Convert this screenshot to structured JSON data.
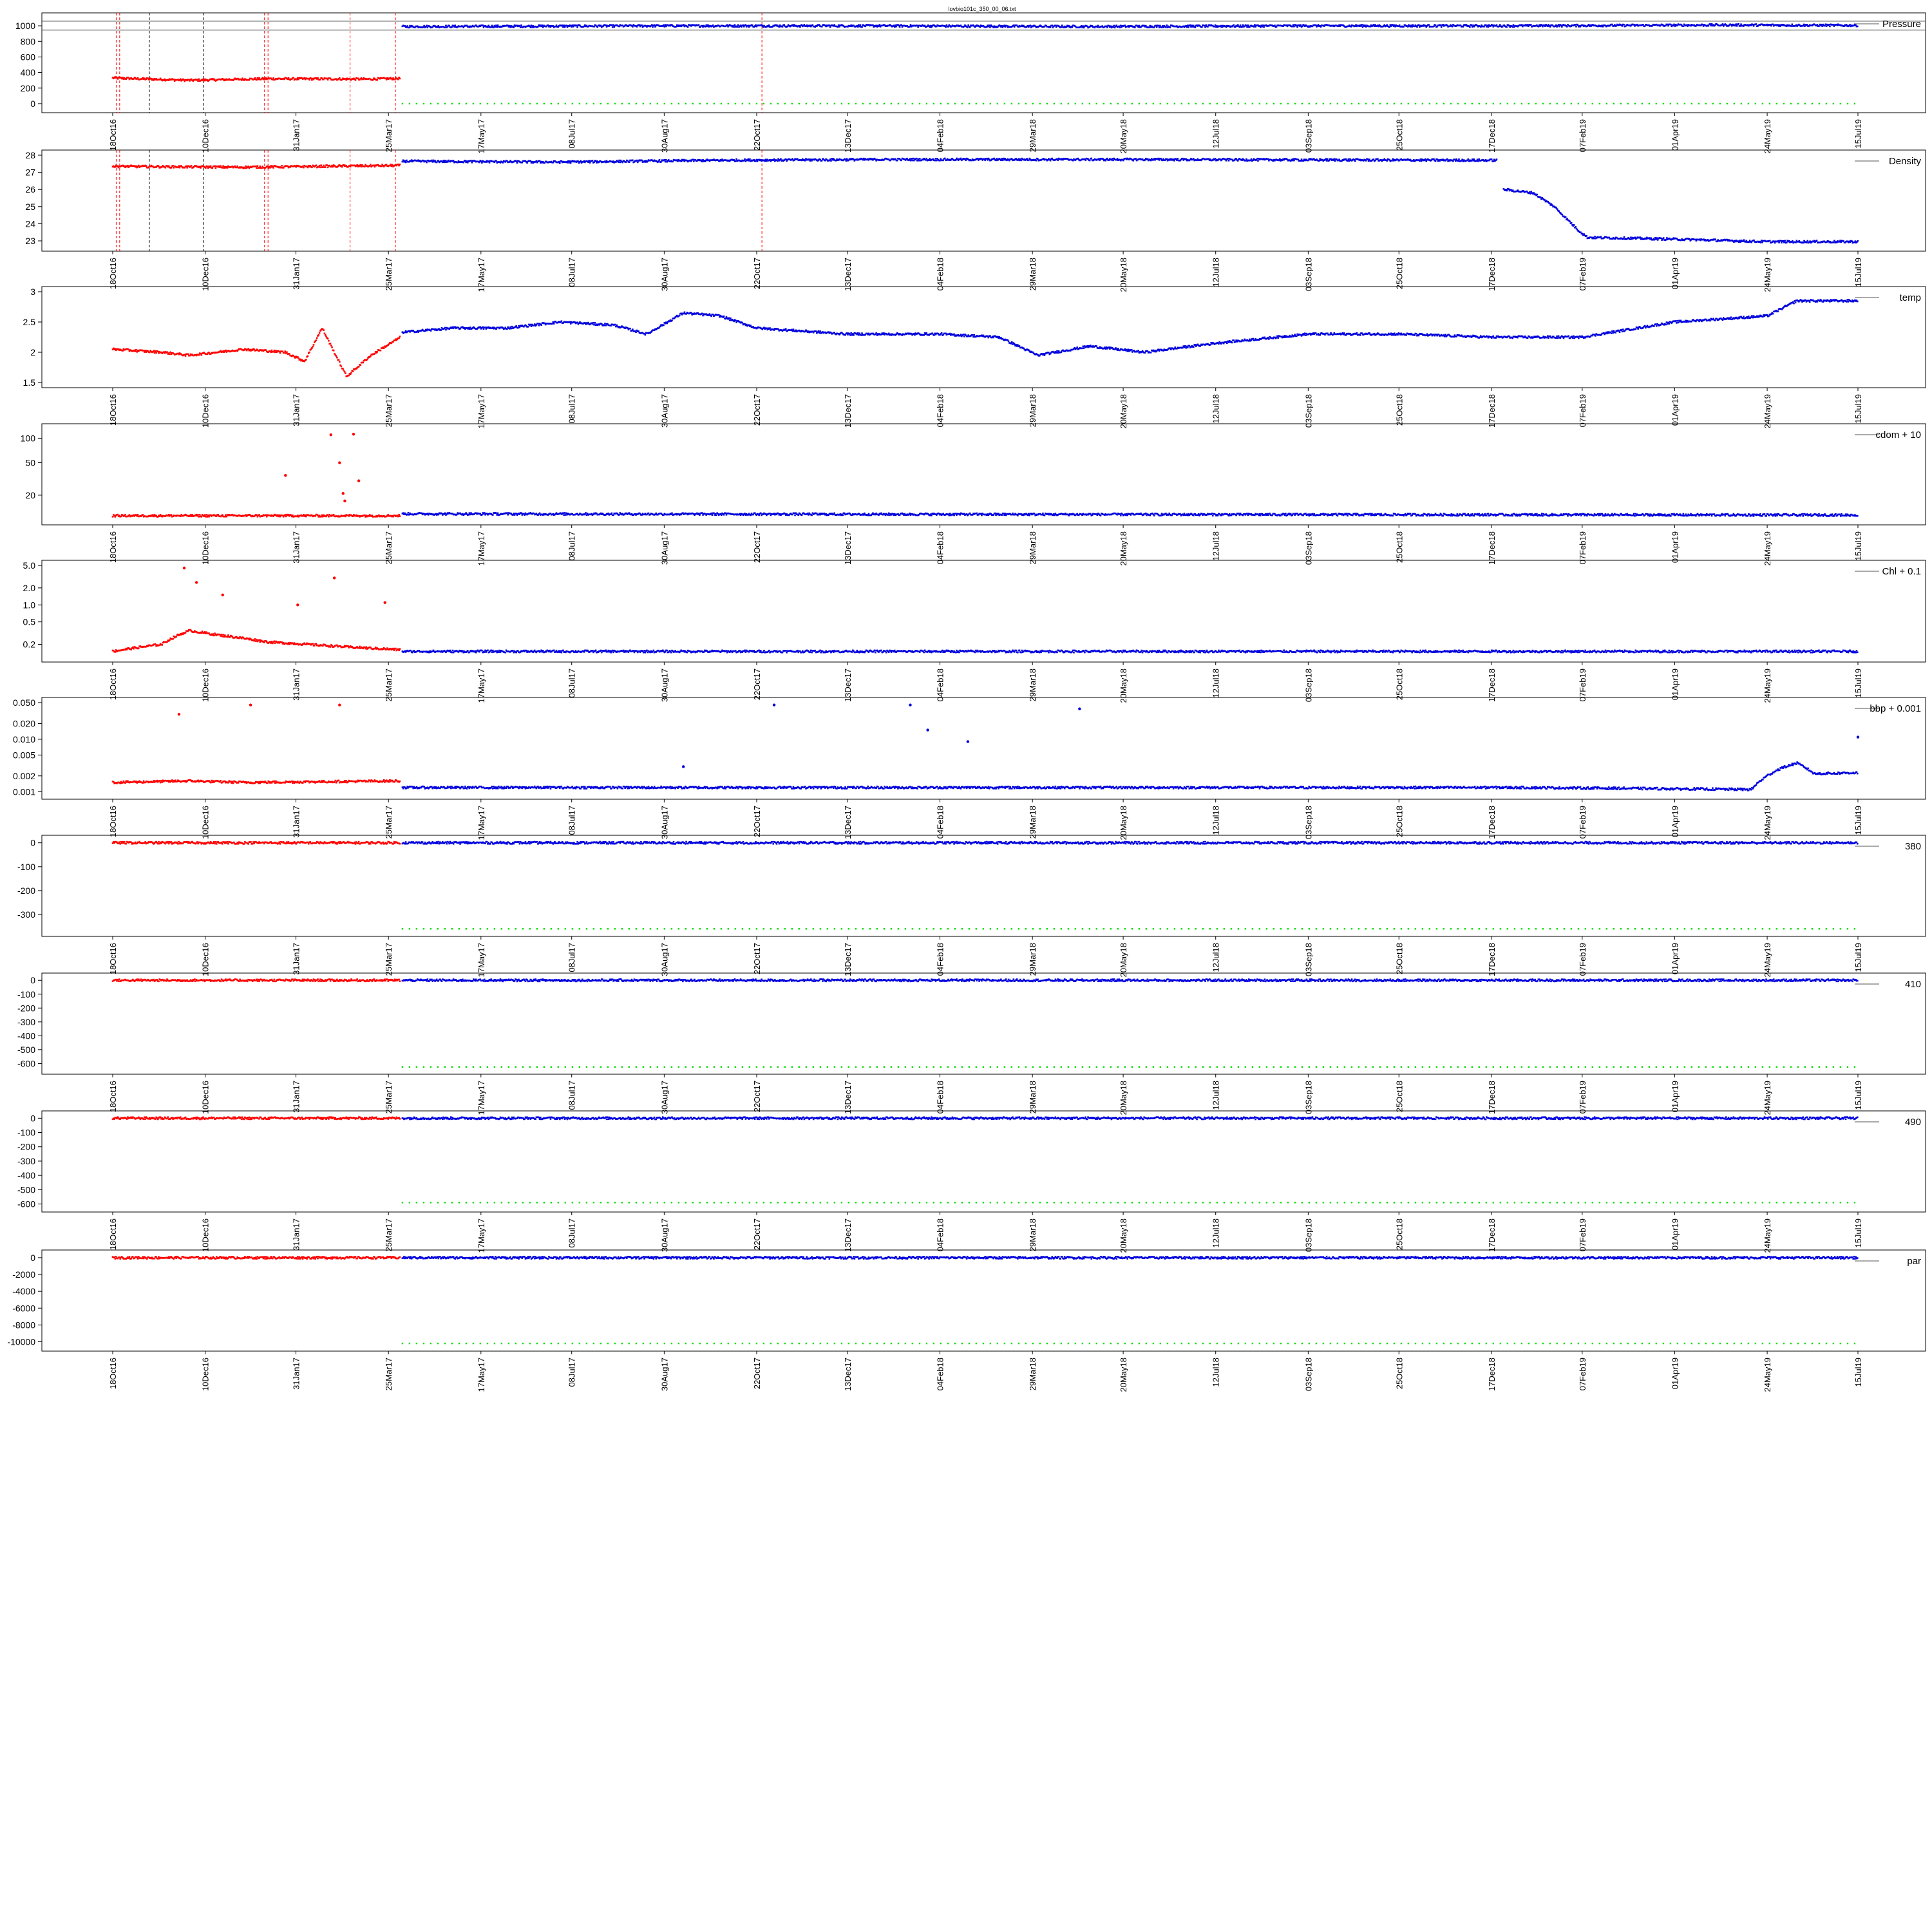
{
  "title": "lovbio101c_350_00_06.txt",
  "x_ticks": [
    "18Oct16",
    "10Dec16",
    "31Jan17",
    "25Mar17",
    "17May17",
    "08Jul17",
    "30Aug17",
    "22Oct17",
    "13Dec17",
    "04Feb18",
    "29Mar18",
    "20May18",
    "12Jul18",
    "03Sep18",
    "25Oct18",
    "17Dec18",
    "07Feb19",
    "01Apr19",
    "24May19",
    "15Jul19"
  ],
  "colors": {
    "segment1": "#ff0000",
    "segment2": "#0000dd",
    "flag": "#00dd00",
    "marker_red": "#ff0000",
    "marker_black": "#000000"
  },
  "chart_data": [
    {
      "type": "scatter",
      "name": "Pressure",
      "legend": "Pressure",
      "legend_position": "top-right",
      "ylim": [
        -50,
        1100
      ],
      "yticks": [
        0,
        200,
        400,
        600,
        800,
        1000
      ],
      "yscale": "linear",
      "segments": [
        {
          "color": "segment1",
          "points": [
            [
              "18Oct16",
              330
            ],
            [
              "01Dec16",
              300
            ],
            [
              "15Jan17",
              320
            ],
            [
              "15Mar17",
              315
            ],
            [
              "01Apr17",
              325
            ]
          ]
        },
        {
          "color": "segment2",
          "points": [
            [
              "02Apr17",
              990
            ],
            [
              "01Sep17",
              1000
            ],
            [
              "01Jan18",
              1000
            ],
            [
              "01May18",
              990
            ],
            [
              "01Sep18",
              1000
            ],
            [
              "01Jan19",
              1000
            ],
            [
              "01May19",
              1010
            ],
            [
              "15Jul19",
              1005
            ]
          ]
        }
      ],
      "flags": {
        "value": 0,
        "from": "02Apr17",
        "to": "15Jul19"
      },
      "hlines": [
        945,
        1060
      ],
      "vlines_red": [
        "20Oct16",
        "22Oct16",
        "13Jan17",
        "15Jan17",
        "03Mar17",
        "29Mar17",
        "25Oct17"
      ],
      "vlines_black": [
        "08Nov16",
        "09Dec16"
      ]
    },
    {
      "type": "scatter",
      "name": "Density",
      "legend": "Density",
      "legend_position": "top-right",
      "ylim": [
        22.7,
        28.0
      ],
      "yticks": [
        23,
        24,
        25,
        26,
        27,
        28
      ],
      "yscale": "linear",
      "segments": [
        {
          "color": "segment1",
          "points": [
            [
              "18Oct16",
              27.35
            ],
            [
              "01Jan17",
              27.3
            ],
            [
              "01Apr17",
              27.4
            ]
          ]
        },
        {
          "color": "segment2",
          "points": [
            [
              "02Apr17",
              27.65
            ],
            [
              "01Jul17",
              27.6
            ],
            [
              "01Oct17",
              27.7
            ],
            [
              "01Jan18",
              27.75
            ],
            [
              "01Jun18",
              27.75
            ],
            [
              "20Dec18",
              27.7
            ]
          ]
        },
        {
          "color": "segment2",
          "points": [
            [
              "24Dec18",
              26.0
            ],
            [
              "10Jan19",
              25.8
            ],
            [
              "22Jan19",
              25.0
            ],
            [
              "05Feb19",
              23.6
            ],
            [
              "10Feb19",
              23.2
            ],
            [
              "01Apr19",
              23.1
            ],
            [
              "24May19",
              22.95
            ],
            [
              "15Jul19",
              22.95
            ]
          ]
        }
      ],
      "vlines_red": [
        "20Oct16",
        "22Oct16",
        "13Jan17",
        "15Jan17",
        "03Mar17",
        "29Mar17",
        "25Oct17"
      ],
      "vlines_black": [
        "08Nov16",
        "09Dec16"
      ]
    },
    {
      "type": "scatter",
      "name": "temp",
      "legend": "temp",
      "legend_position": "top-right",
      "ylim": [
        1.5,
        3.0
      ],
      "yticks": [
        1.5,
        2.0,
        2.5,
        3.0
      ],
      "yscale": "linear",
      "segments": [
        {
          "color": "segment1",
          "points": [
            [
              "18Oct16",
              2.05
            ],
            [
              "15Nov16",
              2.0
            ],
            [
              "01Dec16",
              1.95
            ],
            [
              "01Jan17",
              2.05
            ],
            [
              "25Jan17",
              2.0
            ],
            [
              "05Feb17",
              1.85
            ],
            [
              "15Feb17",
              2.4
            ],
            [
              "01Mar17",
              1.6
            ],
            [
              "15Mar17",
              1.95
            ],
            [
              "01Apr17",
              2.25
            ]
          ]
        },
        {
          "color": "segment2",
          "points": [
            [
              "02Apr17",
              2.33
            ],
            [
              "01May17",
              2.4
            ],
            [
              "01Jun17",
              2.4
            ],
            [
              "01Jul17",
              2.5
            ],
            [
              "01Aug17",
              2.45
            ],
            [
              "20Aug17",
              2.3
            ],
            [
              "10Sep17",
              2.65
            ],
            [
              "01Oct17",
              2.6
            ],
            [
              "22Oct17",
              2.4
            ],
            [
              "13Dec17",
              2.3
            ],
            [
              "04Feb18",
              2.3
            ],
            [
              "10Mar18",
              2.25
            ],
            [
              "01Apr18",
              1.95
            ],
            [
              "01May18",
              2.1
            ],
            [
              "01Jun18",
              2.0
            ],
            [
              "12Jul18",
              2.15
            ],
            [
              "03Sep18",
              2.3
            ],
            [
              "25Oct18",
              2.3
            ],
            [
              "17Dec18",
              2.25
            ],
            [
              "07Feb19",
              2.25
            ],
            [
              "01Apr19",
              2.5
            ],
            [
              "24May19",
              2.6
            ],
            [
              "10Jun19",
              2.85
            ],
            [
              "15Jul19",
              2.85
            ]
          ]
        }
      ]
    },
    {
      "type": "scatter",
      "name": "cdom + 10",
      "legend": "cdom + 10",
      "legend_position": "top-right",
      "ylim": [
        10,
        130
      ],
      "yticks": [
        20,
        50,
        100
      ],
      "yscale": "log",
      "segments": [
        {
          "color": "segment1",
          "points": [
            [
              "18Oct16",
              11.2
            ],
            [
              "01Apr17",
              11.2
            ]
          ]
        },
        {
          "color": "segment2",
          "points": [
            [
              "02Apr17",
              11.8
            ],
            [
              "15Jul19",
              11.4
            ]
          ]
        }
      ],
      "outliers": [
        [
          "25Jan17",
          35
        ],
        [
          "20Feb17",
          110
        ],
        [
          "05Mar17",
          112
        ],
        [
          "25Feb17",
          50
        ],
        [
          "08Mar17",
          30
        ],
        [
          "27Feb17",
          21
        ],
        [
          "28Feb17",
          17
        ]
      ]
    },
    {
      "type": "scatter",
      "name": "Chl + 0.1",
      "legend": "Chl + 0.1",
      "legend_position": "top-right",
      "ylim": [
        0.12,
        5.0
      ],
      "yticks": [
        0.2,
        0.5,
        1.0,
        2.0,
        5.0
      ],
      "yscale": "log",
      "segments": [
        {
          "color": "segment1",
          "points": [
            [
              "18Oct16",
              0.15
            ],
            [
              "15Nov16",
              0.2
            ],
            [
              "01Dec16",
              0.35
            ],
            [
              "15Dec16",
              0.3
            ],
            [
              "15Jan17",
              0.22
            ],
            [
              "01Mar17",
              0.18
            ],
            [
              "01Apr17",
              0.16
            ]
          ]
        },
        {
          "color": "segment2",
          "points": [
            [
              "02Apr17",
              0.15
            ],
            [
              "15Jul19",
              0.15
            ]
          ]
        }
      ],
      "outliers": [
        [
          "28Nov16",
          4.5
        ],
        [
          "05Dec16",
          2.5
        ],
        [
          "20Dec16",
          1.5
        ],
        [
          "22Feb17",
          3.0
        ],
        [
          "01Feb17",
          1.0
        ],
        [
          "23Mar17",
          1.1
        ]
      ]
    },
    {
      "type": "scatter",
      "name": "bbp + 0.001",
      "legend": "bbp + 0.001",
      "legend_position": "top-right",
      "ylim": [
        0.0009,
        0.05
      ],
      "yticks": [
        0.001,
        0.002,
        0.005,
        0.01,
        0.02,
        0.05
      ],
      "yscale": "log",
      "segments": [
        {
          "color": "segment1",
          "points": [
            [
              "18Oct16",
              0.0015
            ],
            [
              "01Dec16",
              0.0016
            ],
            [
              "01Jan17",
              0.0015
            ],
            [
              "01Apr17",
              0.0016
            ]
          ]
        },
        {
          "color": "segment2",
          "points": [
            [
              "02Apr17",
              0.0012
            ],
            [
              "01Jan18",
              0.0012
            ],
            [
              "01Jan19",
              0.0012
            ],
            [
              "15May19",
              0.0011
            ],
            [
              "01Jun19",
              0.0028
            ],
            [
              "10Jun19",
              0.0035
            ],
            [
              "20Jun19",
              0.0022
            ],
            [
              "15Jul19",
              0.0023
            ]
          ]
        }
      ],
      "outliers": [
        [
          "25Nov16",
          0.03
        ],
        [
          "05Jan17",
          0.045
        ],
        [
          "25Feb17",
          0.045
        ],
        [
          "10Sep17",
          0.003
        ],
        [
          "01Nov17",
          0.045
        ],
        [
          "18Jan18",
          0.045
        ],
        [
          "28Jan18",
          0.015
        ],
        [
          "20Feb18",
          0.009
        ],
        [
          "25Apr18",
          0.038
        ],
        [
          "15Jul19",
          0.011
        ]
      ]
    },
    {
      "type": "scatter",
      "name": "380",
      "legend": "380",
      "legend_position": "top-right",
      "ylim": [
        -370,
        10
      ],
      "yticks": [
        -300,
        -200,
        -100,
        0
      ],
      "yscale": "linear",
      "segments": [
        {
          "color": "segment1",
          "points": [
            [
              "18Oct16",
              0
            ],
            [
              "01Apr17",
              0
            ]
          ]
        },
        {
          "color": "segment2",
          "points": [
            [
              "02Apr17",
              0
            ],
            [
              "15Jul19",
              0
            ]
          ]
        }
      ],
      "flags": {
        "value": -360,
        "from": "02Apr17",
        "to": "15Jul19"
      }
    },
    {
      "type": "scatter",
      "name": "410",
      "legend": "410",
      "legend_position": "top-right",
      "ylim": [
        -640,
        15
      ],
      "yticks": [
        -600,
        -500,
        -400,
        -300,
        -200,
        -100,
        0
      ],
      "yscale": "linear",
      "segments": [
        {
          "color": "segment1",
          "points": [
            [
              "18Oct16",
              0
            ],
            [
              "01Apr17",
              0
            ]
          ]
        },
        {
          "color": "segment2",
          "points": [
            [
              "02Apr17",
              0
            ],
            [
              "15Jul19",
              0
            ]
          ]
        }
      ],
      "flags": {
        "value": -625,
        "from": "02Apr17",
        "to": "15Jul19"
      }
    },
    {
      "type": "scatter",
      "name": "490",
      "legend": "490",
      "legend_position": "top-right",
      "ylim": [
        -620,
        15
      ],
      "yticks": [
        -600,
        -500,
        -400,
        -300,
        -200,
        -100,
        0
      ],
      "yscale": "linear",
      "segments": [
        {
          "color": "segment1",
          "points": [
            [
              "18Oct16",
              0
            ],
            [
              "01Apr17",
              0
            ]
          ]
        },
        {
          "color": "segment2",
          "points": [
            [
              "02Apr17",
              0
            ],
            [
              "15Jul19",
              0
            ]
          ]
        }
      ],
      "flags": {
        "value": -590,
        "from": "02Apr17",
        "to": "15Jul19"
      }
    },
    {
      "type": "scatter",
      "name": "par",
      "legend": "par",
      "legend_position": "top-right",
      "ylim": [
        -10500,
        300
      ],
      "yticks": [
        -10000,
        -8000,
        -6000,
        -4000,
        -2000,
        0
      ],
      "yscale": "linear",
      "segments": [
        {
          "color": "segment1",
          "points": [
            [
              "18Oct16",
              0
            ],
            [
              "01Apr17",
              0
            ]
          ]
        },
        {
          "color": "segment2",
          "points": [
            [
              "02Apr17",
              0
            ],
            [
              "15Jul19",
              0
            ]
          ]
        }
      ],
      "flags": {
        "value": -10200,
        "from": "02Apr17",
        "to": "15Jul19"
      }
    }
  ]
}
